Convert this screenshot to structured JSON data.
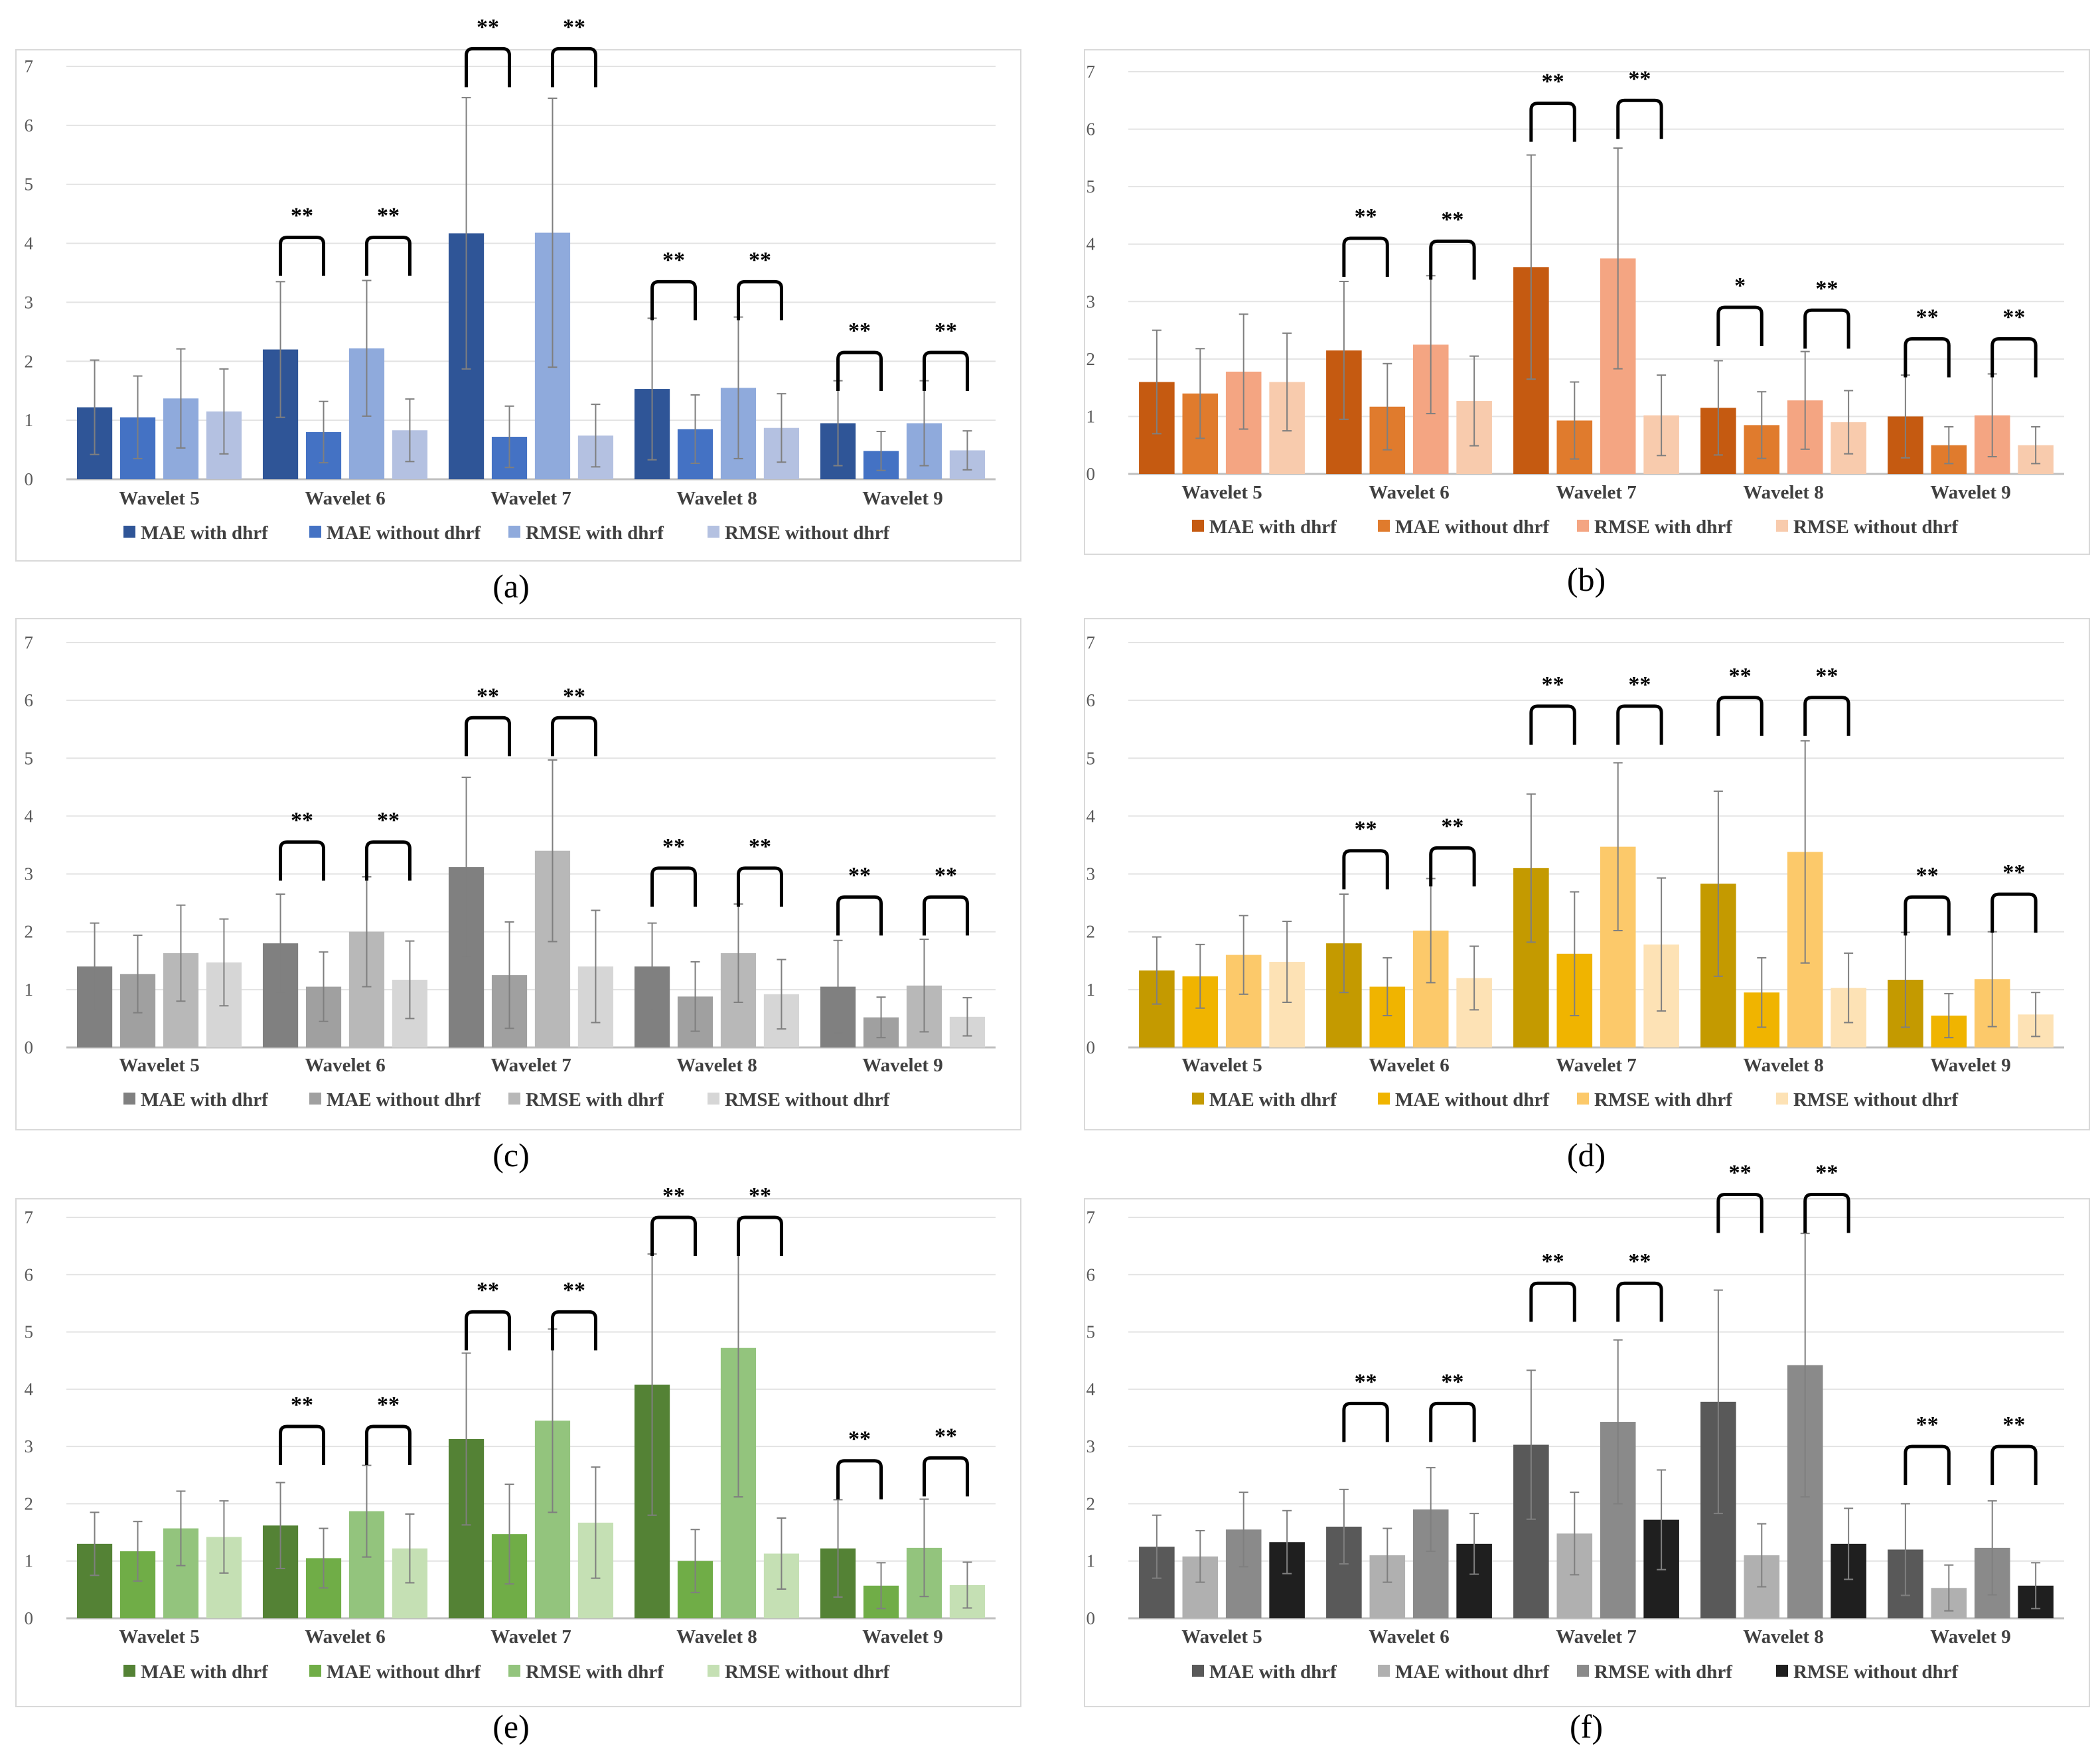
{
  "chart_data": [
    {
      "panel_label": "(a)",
      "type": "bar",
      "categories": [
        "Wavelet 5",
        "Wavelet 6",
        "Wavelet 7",
        "Wavelet 8",
        "Wavelet 9"
      ],
      "ylim": [
        0,
        7
      ],
      "yticks": [
        "0",
        "1",
        "2",
        "3",
        "4",
        "5",
        "6",
        "7"
      ],
      "colors": [
        "#2f5597",
        "#4472c4",
        "#8faadc",
        "#b4c1e1"
      ],
      "series": [
        {
          "name": "MAE with dhrf",
          "values": [
            1.22,
            2.2,
            4.17,
            1.53,
            0.95
          ],
          "errors": [
            0.8,
            1.15,
            2.3,
            1.2,
            0.72
          ]
        },
        {
          "name": "MAE without dhrf",
          "values": [
            1.05,
            0.8,
            0.72,
            0.85,
            0.48
          ],
          "errors": [
            0.7,
            0.52,
            0.52,
            0.58,
            0.33
          ]
        },
        {
          "name": "RMSE with dhrf",
          "values": [
            1.37,
            2.22,
            4.18,
            1.55,
            0.95
          ],
          "errors": [
            0.84,
            1.15,
            2.28,
            1.2,
            0.72
          ]
        },
        {
          "name": "RMSE without dhrf",
          "values": [
            1.15,
            0.83,
            0.74,
            0.87,
            0.49
          ],
          "errors": [
            0.72,
            0.53,
            0.53,
            0.58,
            0.33
          ]
        }
      ],
      "significance": [
        {
          "label": "**",
          "groups": [
            1,
            1
          ],
          "level": 4.1
        },
        {
          "label": "**",
          "groups": [
            1,
            1
          ],
          "level": 4.1
        },
        {
          "label": "**",
          "groups": [
            2,
            2
          ],
          "level": 7.3
        },
        {
          "label": "**",
          "groups": [
            2,
            2
          ],
          "level": 7.3
        },
        {
          "label": "**",
          "groups": [
            3,
            3
          ],
          "level": 3.35
        },
        {
          "label": "**",
          "groups": [
            3,
            3
          ],
          "level": 3.35
        },
        {
          "label": "**",
          "groups": [
            4,
            4
          ],
          "level": 2.15
        },
        {
          "label": "**",
          "groups": [
            4,
            4
          ],
          "level": 2.15
        }
      ]
    },
    {
      "panel_label": "(b)",
      "type": "bar",
      "categories": [
        "Wavelet 5",
        "Wavelet 6",
        "Wavelet 7",
        "Wavelet 8",
        "Wavelet 9"
      ],
      "ylim": [
        0,
        7
      ],
      "yticks": [
        "0",
        "1",
        "2",
        "3",
        "4",
        "5",
        "6",
        "7"
      ],
      "colors": [
        "#c55a11",
        "#e07b2d",
        "#f4a582",
        "#f8cbad"
      ],
      "series": [
        {
          "name": "MAE with dhrf",
          "values": [
            1.6,
            2.15,
            3.6,
            1.15,
            1.0
          ],
          "errors": [
            0.9,
            1.2,
            1.95,
            0.82,
            0.72
          ]
        },
        {
          "name": "MAE without dhrf",
          "values": [
            1.4,
            1.17,
            0.93,
            0.85,
            0.5
          ],
          "errors": [
            0.78,
            0.75,
            0.67,
            0.58,
            0.32
          ]
        },
        {
          "name": "RMSE with dhrf",
          "values": [
            1.78,
            2.25,
            3.75,
            1.28,
            1.02
          ],
          "errors": [
            1.0,
            1.2,
            1.92,
            0.85,
            0.72
          ]
        },
        {
          "name": "RMSE without dhrf",
          "values": [
            1.6,
            1.27,
            1.02,
            0.9,
            0.5
          ],
          "errors": [
            0.85,
            0.78,
            0.7,
            0.55,
            0.32
          ]
        }
      ],
      "significance": [
        {
          "label": "**",
          "groups": [
            1,
            1
          ],
          "level": 4.1
        },
        {
          "label": "**",
          "groups": [
            1,
            1
          ],
          "level": 4.05
        },
        {
          "label": "**",
          "groups": [
            2,
            2
          ],
          "level": 6.45
        },
        {
          "label": "**",
          "groups": [
            2,
            2
          ],
          "level": 6.5
        },
        {
          "label": "*",
          "groups": [
            3,
            3
          ],
          "level": 2.9
        },
        {
          "label": "**",
          "groups": [
            3,
            3
          ],
          "level": 2.85
        },
        {
          "label": "**",
          "groups": [
            4,
            4
          ],
          "level": 2.35
        },
        {
          "label": "**",
          "groups": [
            4,
            4
          ],
          "level": 2.35
        }
      ]
    },
    {
      "panel_label": "(c)",
      "type": "bar",
      "categories": [
        "Wavelet 5",
        "Wavelet 6",
        "Wavelet 7",
        "Wavelet 8",
        "Wavelet 9"
      ],
      "ylim": [
        0,
        7
      ],
      "yticks": [
        "0",
        "1",
        "2",
        "3",
        "4",
        "5",
        "6",
        "7"
      ],
      "colors": [
        "#808080",
        "#a0a0a0",
        "#b8b8b8",
        "#d6d6d6"
      ],
      "series": [
        {
          "name": "MAE with dhrf",
          "values": [
            1.4,
            1.8,
            3.12,
            1.4,
            1.05
          ],
          "errors": [
            0.75,
            0.85,
            1.55,
            0.75,
            0.8
          ]
        },
        {
          "name": "MAE without dhrf",
          "values": [
            1.27,
            1.05,
            1.25,
            0.88,
            0.52
          ],
          "errors": [
            0.67,
            0.6,
            0.92,
            0.6,
            0.35
          ]
        },
        {
          "name": "RMSE with dhrf",
          "values": [
            1.63,
            2.0,
            3.4,
            1.63,
            1.07
          ],
          "errors": [
            0.83,
            0.95,
            1.57,
            0.85,
            0.8
          ]
        },
        {
          "name": "RMSE without dhrf",
          "values": [
            1.47,
            1.17,
            1.4,
            0.92,
            0.53
          ],
          "errors": [
            0.75,
            0.67,
            0.97,
            0.6,
            0.33
          ]
        }
      ],
      "significance": [
        {
          "label": "**",
          "groups": [
            1,
            1
          ],
          "level": 3.55
        },
        {
          "label": "**",
          "groups": [
            1,
            1
          ],
          "level": 3.55
        },
        {
          "label": "**",
          "groups": [
            2,
            2
          ],
          "level": 5.7
        },
        {
          "label": "**",
          "groups": [
            2,
            2
          ],
          "level": 5.7
        },
        {
          "label": "**",
          "groups": [
            3,
            3
          ],
          "level": 3.1
        },
        {
          "label": "**",
          "groups": [
            3,
            3
          ],
          "level": 3.1
        },
        {
          "label": "**",
          "groups": [
            4,
            4
          ],
          "level": 2.6
        },
        {
          "label": "**",
          "groups": [
            4,
            4
          ],
          "level": 2.6
        }
      ]
    },
    {
      "panel_label": "(d)",
      "type": "bar",
      "categories": [
        "Wavelet 5",
        "Wavelet 6",
        "Wavelet 7",
        "Wavelet 8",
        "Wavelet 9"
      ],
      "ylim": [
        0,
        7
      ],
      "yticks": [
        "0",
        "1",
        "2",
        "3",
        "4",
        "5",
        "6",
        "7"
      ],
      "colors": [
        "#c49a00",
        "#f0b400",
        "#fcc96a",
        "#fde2b5"
      ],
      "series": [
        {
          "name": "MAE with dhrf",
          "values": [
            1.33,
            1.8,
            3.1,
            2.83,
            1.17
          ],
          "errors": [
            0.58,
            0.85,
            1.28,
            1.6,
            0.82
          ]
        },
        {
          "name": "MAE without dhrf",
          "values": [
            1.23,
            1.05,
            1.62,
            0.95,
            0.55
          ],
          "errors": [
            0.55,
            0.5,
            1.07,
            0.6,
            0.38
          ]
        },
        {
          "name": "RMSE with dhrf",
          "values": [
            1.6,
            2.02,
            3.47,
            3.38,
            1.18
          ],
          "errors": [
            0.68,
            0.9,
            1.45,
            1.92,
            0.82
          ]
        },
        {
          "name": "RMSE without dhrf",
          "values": [
            1.48,
            1.2,
            1.78,
            1.03,
            0.57
          ],
          "errors": [
            0.7,
            0.55,
            1.15,
            0.6,
            0.38
          ]
        }
      ],
      "significance": [
        {
          "label": "**",
          "groups": [
            1,
            1
          ],
          "level": 3.4
        },
        {
          "label": "**",
          "groups": [
            1,
            1
          ],
          "level": 3.45
        },
        {
          "label": "**",
          "groups": [
            2,
            2
          ],
          "level": 5.9
        },
        {
          "label": "**",
          "groups": [
            2,
            2
          ],
          "level": 5.9
        },
        {
          "label": "**",
          "groups": [
            3,
            3
          ],
          "level": 6.05
        },
        {
          "label": "**",
          "groups": [
            3,
            3
          ],
          "level": 6.05
        },
        {
          "label": "**",
          "groups": [
            4,
            4
          ],
          "level": 2.6
        },
        {
          "label": "**",
          "groups": [
            4,
            4
          ],
          "level": 2.65
        }
      ]
    },
    {
      "panel_label": "(e)",
      "type": "bar",
      "categories": [
        "Wavelet 5",
        "Wavelet 6",
        "Wavelet 7",
        "Wavelet 8",
        "Wavelet 9"
      ],
      "ylim": [
        0,
        7
      ],
      "yticks": [
        "0",
        "1",
        "2",
        "3",
        "4",
        "5",
        "6",
        "7"
      ],
      "colors": [
        "#548235",
        "#70ad47",
        "#93c47d",
        "#c5e0b4"
      ],
      "series": [
        {
          "name": "MAE with dhrf",
          "values": [
            1.3,
            1.62,
            3.13,
            4.08,
            1.22
          ],
          "errors": [
            0.55,
            0.75,
            1.5,
            2.28,
            0.85
          ]
        },
        {
          "name": "MAE without dhrf",
          "values": [
            1.17,
            1.05,
            1.47,
            1.0,
            0.57
          ],
          "errors": [
            0.52,
            0.52,
            0.87,
            0.55,
            0.4
          ]
        },
        {
          "name": "RMSE with dhrf",
          "values": [
            1.57,
            1.87,
            3.45,
            4.72,
            1.23
          ],
          "errors": [
            0.65,
            0.8,
            1.6,
            2.6,
            0.85
          ]
        },
        {
          "name": "RMSE without dhrf",
          "values": [
            1.42,
            1.22,
            1.67,
            1.13,
            0.58
          ],
          "errors": [
            0.63,
            0.6,
            0.97,
            0.62,
            0.4
          ]
        }
      ],
      "significance": [
        {
          "label": "**",
          "groups": [
            1,
            1
          ],
          "level": 3.35
        },
        {
          "label": "**",
          "groups": [
            1,
            1
          ],
          "level": 3.35
        },
        {
          "label": "**",
          "groups": [
            2,
            2
          ],
          "level": 5.35
        },
        {
          "label": "**",
          "groups": [
            2,
            2
          ],
          "level": 5.35
        },
        {
          "label": "**",
          "groups": [
            3,
            3
          ],
          "level": 7.0
        },
        {
          "label": "**",
          "groups": [
            3,
            3
          ],
          "level": 7.0
        },
        {
          "label": "**",
          "groups": [
            4,
            4
          ],
          "level": 2.75
        },
        {
          "label": "**",
          "groups": [
            4,
            4
          ],
          "level": 2.8
        }
      ]
    },
    {
      "panel_label": "(f)",
      "type": "bar",
      "categories": [
        "Wavelet 5",
        "Wavelet 6",
        "Wavelet 7",
        "Wavelet 8",
        "Wavelet 9"
      ],
      "ylim": [
        0,
        7
      ],
      "yticks": [
        "0",
        "1",
        "2",
        "3",
        "4",
        "5",
        "6",
        "7"
      ],
      "colors": [
        "#595959",
        "#b0b0b0",
        "#8a8a8a",
        "#1f1f1f"
      ],
      "series": [
        {
          "name": "MAE with dhrf",
          "values": [
            1.25,
            1.6,
            3.03,
            3.78,
            1.2
          ],
          "errors": [
            0.55,
            0.65,
            1.3,
            1.95,
            0.8
          ]
        },
        {
          "name": "MAE without dhrf",
          "values": [
            1.08,
            1.1,
            1.48,
            1.1,
            0.53
          ],
          "errors": [
            0.45,
            0.47,
            0.72,
            0.55,
            0.4
          ]
        },
        {
          "name": "RMSE with dhrf",
          "values": [
            1.55,
            1.9,
            3.43,
            4.42,
            1.23
          ],
          "errors": [
            0.65,
            0.73,
            1.43,
            2.3,
            0.82
          ]
        },
        {
          "name": "RMSE without dhrf",
          "values": [
            1.33,
            1.3,
            1.72,
            1.3,
            0.57
          ],
          "errors": [
            0.55,
            0.53,
            0.87,
            0.62,
            0.4
          ]
        }
      ],
      "significance": [
        {
          "label": "**",
          "groups": [
            1,
            1
          ],
          "level": 3.75
        },
        {
          "label": "**",
          "groups": [
            1,
            1
          ],
          "level": 3.75
        },
        {
          "label": "**",
          "groups": [
            2,
            2
          ],
          "level": 5.85
        },
        {
          "label": "**",
          "groups": [
            2,
            2
          ],
          "level": 5.85
        },
        {
          "label": "**",
          "groups": [
            3,
            3
          ],
          "level": 7.4
        },
        {
          "label": "**",
          "groups": [
            3,
            3
          ],
          "level": 7.4
        },
        {
          "label": "**",
          "groups": [
            4,
            4
          ],
          "level": 3.0
        },
        {
          "label": "**",
          "groups": [
            4,
            4
          ],
          "level": 3.0
        }
      ]
    }
  ]
}
